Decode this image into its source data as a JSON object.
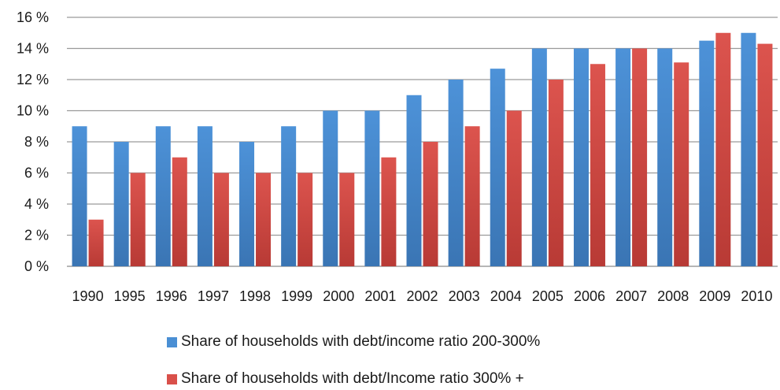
{
  "chart_data": {
    "type": "bar",
    "categories": [
      "1990",
      "1995",
      "1996",
      "1997",
      "1998",
      "1999",
      "2000",
      "2001",
      "2002",
      "2003",
      "2004",
      "2005",
      "2006",
      "2007",
      "2008",
      "2009",
      "2010"
    ],
    "series": [
      {
        "name": "Share of households with debt/income ratio 200-300%",
        "values": [
          9,
          8,
          9,
          9,
          8,
          9,
          10,
          10,
          11,
          12,
          12.7,
          14,
          14,
          14,
          14,
          14.5,
          15
        ],
        "color": "#4a8fd4"
      },
      {
        "name": "Share of households with debt/Income ratio 300% +",
        "values": [
          3,
          6,
          7,
          6,
          6,
          6,
          6,
          7,
          8,
          9,
          10,
          12,
          13,
          14,
          13.1,
          15,
          14.3
        ],
        "color": "#d9504a"
      }
    ],
    "ylim": [
      0,
      16
    ],
    "yticks": [
      "0 %",
      "2 %",
      "4 %",
      "6 %",
      "8 %",
      "10 %",
      "12 %",
      "14 %",
      "16 %"
    ],
    "grid": true,
    "legend_position": "bottom"
  }
}
